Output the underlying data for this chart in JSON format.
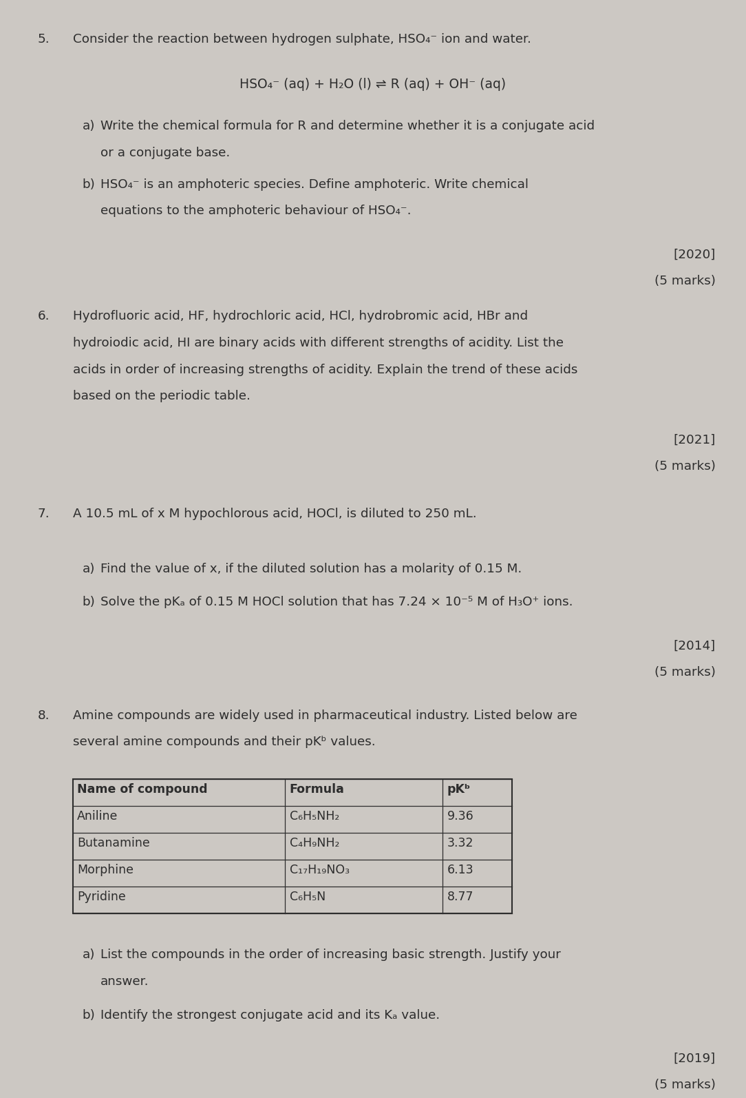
{
  "bg_color": "#ccc8c3",
  "text_color": "#2d2d2d",
  "page_width": 10.64,
  "page_height": 15.58,
  "q5_num": "5.",
  "q5_intro": "Consider the reaction between hydrogen sulphate, HSO₄⁻ ion and water.",
  "q5_equation": "HSO₄⁻ (aq) + H₂O (l) ⇌ R (aq) + OH⁻ (aq)",
  "q5a_label": "a)",
  "q5a_line1": "Write the chemical formula for R and determine whether it is a conjugate acid",
  "q5a_line2": "or a conjugate base.",
  "q5b_label": "b)",
  "q5b_line1": "HSO₄⁻ is an amphoteric species. Define amphoteric. Write chemical",
  "q5b_line2": "equations to the amphoteric behaviour of HSO₄⁻.",
  "q5_year": "[2020]",
  "q5_marks": "(5 marks)",
  "q6_num": "6.",
  "q6_line1": "Hydrofluoric acid, HF, hydrochloric acid, HCl, hydrobromic acid, HBr and",
  "q6_line2": "hydroiodic acid, HI are binary acids with different strengths of acidity. List the",
  "q6_line3": "acids in order of increasing strengths of acidity. Explain the trend of these acids",
  "q6_line4": "based on the periodic table.",
  "q6_year": "[2021]",
  "q6_marks": "(5 marks)",
  "q7_num": "7.",
  "q7_text": "A 10.5 mL of x M hypochlorous acid, HOCl, is diluted to 250 mL.",
  "q7a_label": "a)",
  "q7a_text": "Find the value of x, if the diluted solution has a molarity of 0.15 M.",
  "q7b_label": "b)",
  "q7b_text": "Solve the pKₐ of 0.15 M HOCl solution that has 7.24 × 10⁻⁵ M of H₃O⁺ ions.",
  "q7_year": "[2014]",
  "q7_marks": "(5 marks)",
  "q8_num": "8.",
  "q8_line1": "Amine compounds are widely used in pharmaceutical industry. Listed below are",
  "q8_line2": "several amine compounds and their pKᵇ values.",
  "table_headers": [
    "Name of compound",
    "Formula",
    "pKᵇ"
  ],
  "table_col_bold": [
    true,
    true,
    true
  ],
  "table_rows": [
    [
      "Aniline",
      "C₆H₅NH₂",
      "9.36"
    ],
    [
      "Butanamine",
      "C₄H₉NH₂",
      "3.32"
    ],
    [
      "Morphine",
      "C₁₇H₁₉NO₃",
      "6.13"
    ],
    [
      "Pyridine",
      "C₆H₅N",
      "8.77"
    ]
  ],
  "q8a_label": "a)",
  "q8a_line1": "List the compounds in the order of increasing basic strength. Justify your",
  "q8a_line2": "answer.",
  "q8b_label": "b)",
  "q8b_text": "Identify the strongest conjugate acid and its Kₐ value.",
  "q8_year": "[2019]",
  "q8_marks": "(5 marks)"
}
